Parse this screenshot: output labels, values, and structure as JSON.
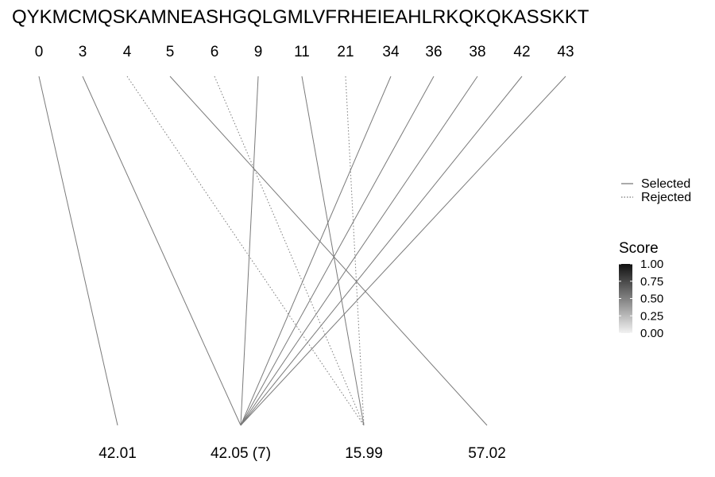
{
  "sequence": "QYKMCMQSKAMNEASHGQLGMLVFRHEIEAHLRKQKQKASSKKT",
  "positions": [
    "0",
    "3",
    "4",
    "5",
    "6",
    "9",
    "11",
    "21",
    "34",
    "36",
    "38",
    "42",
    "43"
  ],
  "targets": [
    "42.01",
    "42.05 (7)",
    "15.99",
    "57.02"
  ],
  "links": [
    {
      "from": "0",
      "to": "42.01",
      "status": "Selected"
    },
    {
      "from": "3",
      "to": "42.05 (7)",
      "status": "Selected"
    },
    {
      "from": "4",
      "to": "15.99",
      "status": "Rejected"
    },
    {
      "from": "5",
      "to": "57.02",
      "status": "Selected"
    },
    {
      "from": "6",
      "to": "15.99",
      "status": "Rejected"
    },
    {
      "from": "9",
      "to": "42.05 (7)",
      "status": "Selected"
    },
    {
      "from": "11",
      "to": "15.99",
      "status": "Selected"
    },
    {
      "from": "21",
      "to": "15.99",
      "status": "Rejected"
    },
    {
      "from": "34",
      "to": "42.05 (7)",
      "status": "Selected"
    },
    {
      "from": "36",
      "to": "42.05 (7)",
      "status": "Selected"
    },
    {
      "from": "38",
      "to": "42.05 (7)",
      "status": "Selected"
    },
    {
      "from": "42",
      "to": "42.05 (7)",
      "status": "Selected"
    },
    {
      "from": "43",
      "to": "42.05 (7)",
      "status": "Selected"
    }
  ],
  "legend": {
    "selected_label": "Selected",
    "rejected_label": "Rejected",
    "score_title": "Score",
    "score_ticks": [
      "1.00",
      "0.75",
      "0.50",
      "0.25",
      "0.00"
    ]
  },
  "colors": {
    "line": "#7a7a7a",
    "score_high": "#111111",
    "score_low": "#f2f2f2"
  }
}
